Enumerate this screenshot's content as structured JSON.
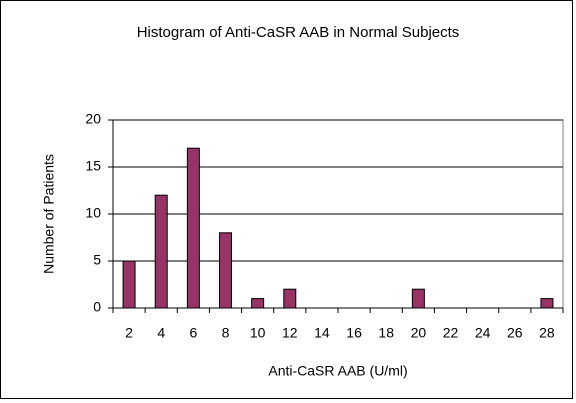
{
  "chart_data": {
    "type": "bar",
    "title": "Histogram of Anti-CaSR AAB in Normal Subjects",
    "x_label": "Anti-CaSR AAB (U/ml)",
    "y_label": "Number of Patients",
    "categories": [
      "2",
      "4",
      "6",
      "8",
      "10",
      "12",
      "14",
      "16",
      "18",
      "20",
      "22",
      "24",
      "26",
      "28"
    ],
    "values": [
      5,
      12,
      17,
      8,
      1,
      2,
      0,
      0,
      0,
      2,
      0,
      0,
      0,
      1
    ],
    "color": "#993366",
    "ylim": [
      0,
      20
    ],
    "yticks": [
      0,
      5,
      10,
      15,
      20
    ],
    "grid": true
  }
}
